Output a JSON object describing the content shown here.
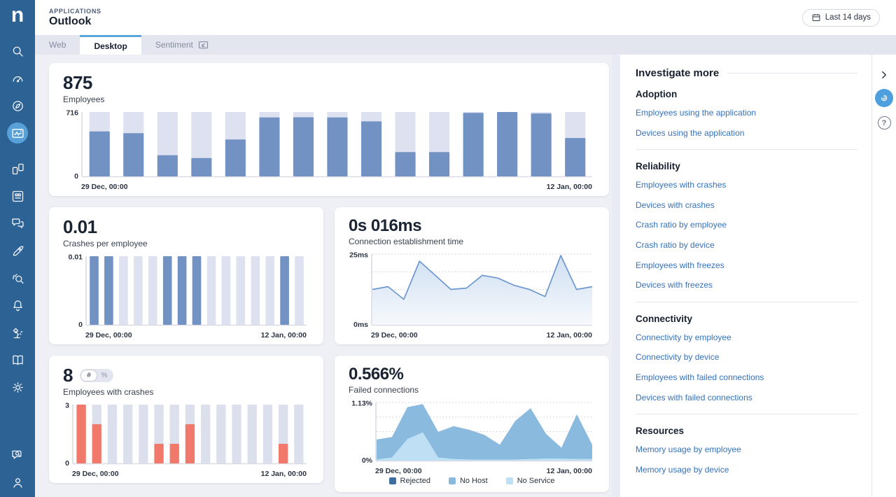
{
  "header": {
    "eyebrow": "APPLICATIONS",
    "title": "Outlook",
    "date_button": "Last 14 days"
  },
  "tabs": [
    {
      "label": "Web",
      "active": false
    },
    {
      "label": "Desktop",
      "active": true
    },
    {
      "label": "Sentiment",
      "active": false,
      "icon": "share-screen"
    }
  ],
  "sidebar": {
    "logo": "n",
    "items": [
      {
        "name": "search",
        "active": false
      },
      {
        "name": "gauge",
        "active": false
      },
      {
        "name": "compass",
        "active": false
      },
      {
        "name": "application-experience",
        "active": true
      },
      {
        "name": "dashboards",
        "active": false,
        "gap_before": true
      },
      {
        "name": "apps-grid",
        "active": false
      },
      {
        "name": "conversations",
        "active": false
      },
      {
        "name": "rocket",
        "active": false
      },
      {
        "name": "signal-search",
        "active": false
      },
      {
        "name": "notifications-bell",
        "active": false
      },
      {
        "name": "lamp",
        "active": false
      },
      {
        "name": "library-book",
        "active": false
      },
      {
        "name": "settings-gear",
        "active": false
      }
    ],
    "bottom_items": [
      {
        "name": "feedback-search",
        "active": false
      },
      {
        "name": "user-profile",
        "active": false
      }
    ]
  },
  "colors": {
    "sidebar_bg": "#2d6295",
    "active_item": "#57a1d8",
    "tab_accent": "#5aa7dc",
    "link": "#3472bd",
    "bar_blue": "#7292c4",
    "bar_track": "#dde1f0",
    "bar_red": "#f0796c",
    "line_blue": "#6d98cf",
    "assist_button": "#4d9fdd"
  },
  "chart_data": [
    {
      "id": "employees",
      "type": "bar",
      "headline": "875",
      "subtitle": "Employees",
      "ylim": [
        0,
        716
      ],
      "ytick_labels": [
        "716",
        "0"
      ],
      "x_start_label": "29 Dec, 00:00",
      "x_end_label": "12 Jan, 00:00",
      "background_value": 716,
      "values": [
        500,
        480,
        235,
        205,
        410,
        655,
        658,
        655,
        612,
        270,
        270,
        707,
        716,
        700,
        427
      ],
      "bar_color": "#7292c4",
      "track_color": "#dde1f0"
    },
    {
      "id": "crashes-per-employee",
      "type": "bar",
      "headline": "0.01",
      "subtitle": "Crashes per employee",
      "ylim": [
        0,
        0.01
      ],
      "ytick_labels": [
        "0.01",
        "0"
      ],
      "x_start_label": "29 Dec, 00:00",
      "x_end_label": "12 Jan, 00:00",
      "background_value": 0.01,
      "values": [
        0.01,
        0.01,
        0,
        0,
        0,
        0.01,
        0.01,
        0.01,
        0,
        0,
        0,
        0,
        0,
        0.01,
        0
      ],
      "bar_color": "#7292c4",
      "track_color": "#dde1f0"
    },
    {
      "id": "connection-establishment-time",
      "type": "line",
      "headline": "0s 016ms",
      "subtitle": "Connection establishment time",
      "ylim": [
        0,
        25
      ],
      "ytick_labels": [
        "25ms",
        "0ms"
      ],
      "x_start_label": "29 Dec, 00:00",
      "x_end_label": "12 Jan, 00:00",
      "values": [
        12.5,
        13.5,
        9,
        22.5,
        17.5,
        12.5,
        13,
        17.5,
        16.5,
        14,
        12.5,
        10,
        24.5,
        12.5,
        13.5
      ],
      "line_color": "#6d98cf",
      "grid": true
    },
    {
      "id": "employees-with-crashes",
      "type": "bar",
      "headline": "8",
      "subtitle": "Employees with crashes",
      "toggle": {
        "options": [
          "#",
          "%"
        ],
        "selected": "#"
      },
      "ylim": [
        0,
        3
      ],
      "ytick_labels": [
        "3",
        "0"
      ],
      "x_start_label": "29 Dec, 00:00",
      "x_end_label": "12 Jan, 00:00",
      "background_value": 3,
      "values": [
        3,
        2,
        0,
        0,
        0,
        1,
        1,
        2,
        0,
        0,
        0,
        0,
        0,
        1,
        0
      ],
      "bar_color": "#f0796c",
      "track_color": "#dcdfec"
    },
    {
      "id": "failed-connections",
      "type": "area-stacked",
      "headline": "0.566%",
      "subtitle": "Failed connections",
      "ylim": [
        0,
        1.13
      ],
      "ytick_labels": [
        "1.13%",
        "0%"
      ],
      "x_start_label": "29 Dec, 00:00",
      "x_end_label": "12 Jan, 00:00",
      "grid": true,
      "series": [
        {
          "name": "Rejected",
          "color": "#3c6e9f",
          "values": [
            0,
            0,
            0,
            0,
            0,
            0,
            0,
            0,
            0,
            0,
            0,
            0,
            0,
            0,
            0
          ]
        },
        {
          "name": "No Host",
          "color": "#8abade",
          "values": [
            0.39,
            0.4,
            0.62,
            0.55,
            0.5,
            0.64,
            0.58,
            0.48,
            0.29,
            0.75,
            0.99,
            0.48,
            0.21,
            0.87,
            0.28
          ]
        },
        {
          "name": "No Service",
          "color": "#bfe0f4",
          "values": [
            0.02,
            0.06,
            0.42,
            0.55,
            0.06,
            0.03,
            0.02,
            0.02,
            0.02,
            0.02,
            0.03,
            0.04,
            0.04,
            0.03,
            0.03
          ]
        }
      ]
    }
  ],
  "investigate": {
    "title": "Investigate more",
    "sections": [
      {
        "heading": "Adoption",
        "links": [
          "Employees using the application",
          "Devices using the application"
        ]
      },
      {
        "heading": "Reliability",
        "links": [
          "Employees with crashes",
          "Devices with crashes",
          "Crash ratio by employee",
          "Crash ratio by device",
          "Employees with freezes",
          "Devices with freezes"
        ]
      },
      {
        "heading": "Connectivity",
        "links": [
          "Connectivity by employee",
          "Connectivity by device",
          "Employees with failed connections",
          "Devices with failed connections"
        ]
      },
      {
        "heading": "Resources",
        "links": [
          "Memory usage by employee",
          "Memory usage by device"
        ]
      }
    ]
  }
}
